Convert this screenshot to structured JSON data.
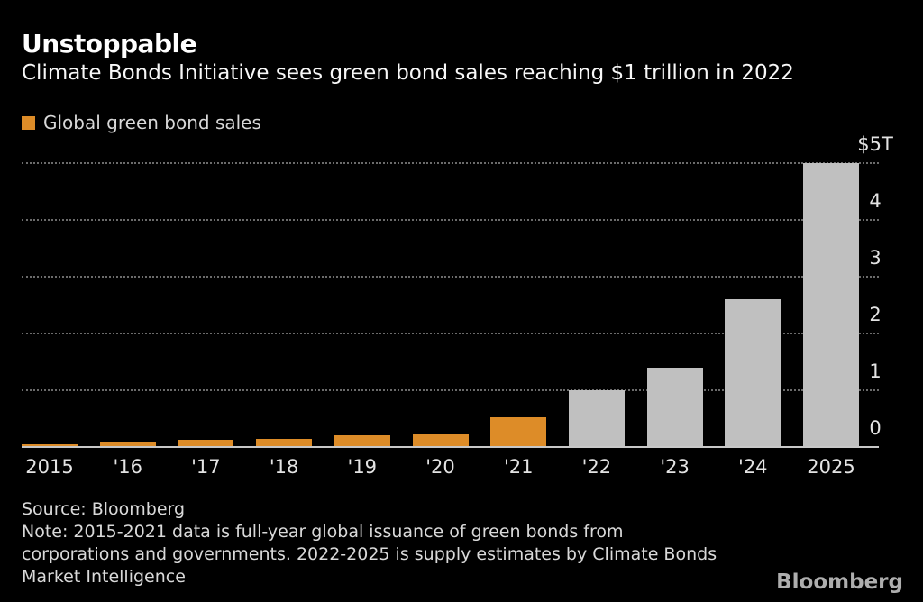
{
  "header": {
    "title": "Unstoppable",
    "subtitle": "Climate Bonds Initiative sees green bond sales reaching $1 trillion in 2022"
  },
  "legend": {
    "label": "Global green bond sales",
    "swatch_color": "#dd8c28"
  },
  "chart_data": {
    "type": "bar",
    "title": "Unstoppable",
    "subtitle": "Climate Bonds Initiative sees green bond sales reaching $1 trillion in 2022",
    "series_name": "Global green bond sales",
    "unit": "USD trillions",
    "categories": [
      "2015",
      "'16",
      "'17",
      "'18",
      "'19",
      "'20",
      "'21",
      "'22",
      "'23",
      "'24",
      "2025"
    ],
    "values": [
      0.05,
      0.09,
      0.13,
      0.15,
      0.2,
      0.23,
      0.52,
      1.0,
      1.4,
      2.6,
      5.0
    ],
    "bar_types": [
      "actual",
      "actual",
      "actual",
      "actual",
      "actual",
      "actual",
      "actual",
      "estimate",
      "estimate",
      "estimate",
      "estimate"
    ],
    "colors": {
      "actual": "#dd8c28",
      "estimate": "#c0c0c0"
    },
    "ylim": [
      0,
      5
    ],
    "y_ticks": [
      0,
      1,
      2,
      3,
      4,
      5
    ],
    "y_tick_labels": [
      "0",
      "1",
      "2",
      "3",
      "4",
      "$5T"
    ],
    "grid": "horizontal-dotted",
    "legend_position": "top-left",
    "axis_side": "right",
    "background": "#000000"
  },
  "footer": {
    "source": "Source: Bloomberg",
    "note_lines": [
      "Note: 2015-2021 data is full-year global issuance of green bonds from",
      "corporations and governments. 2022-2025 is supply estimates by Climate Bonds",
      "Market Intelligence"
    ],
    "logo": "Bloomberg"
  }
}
